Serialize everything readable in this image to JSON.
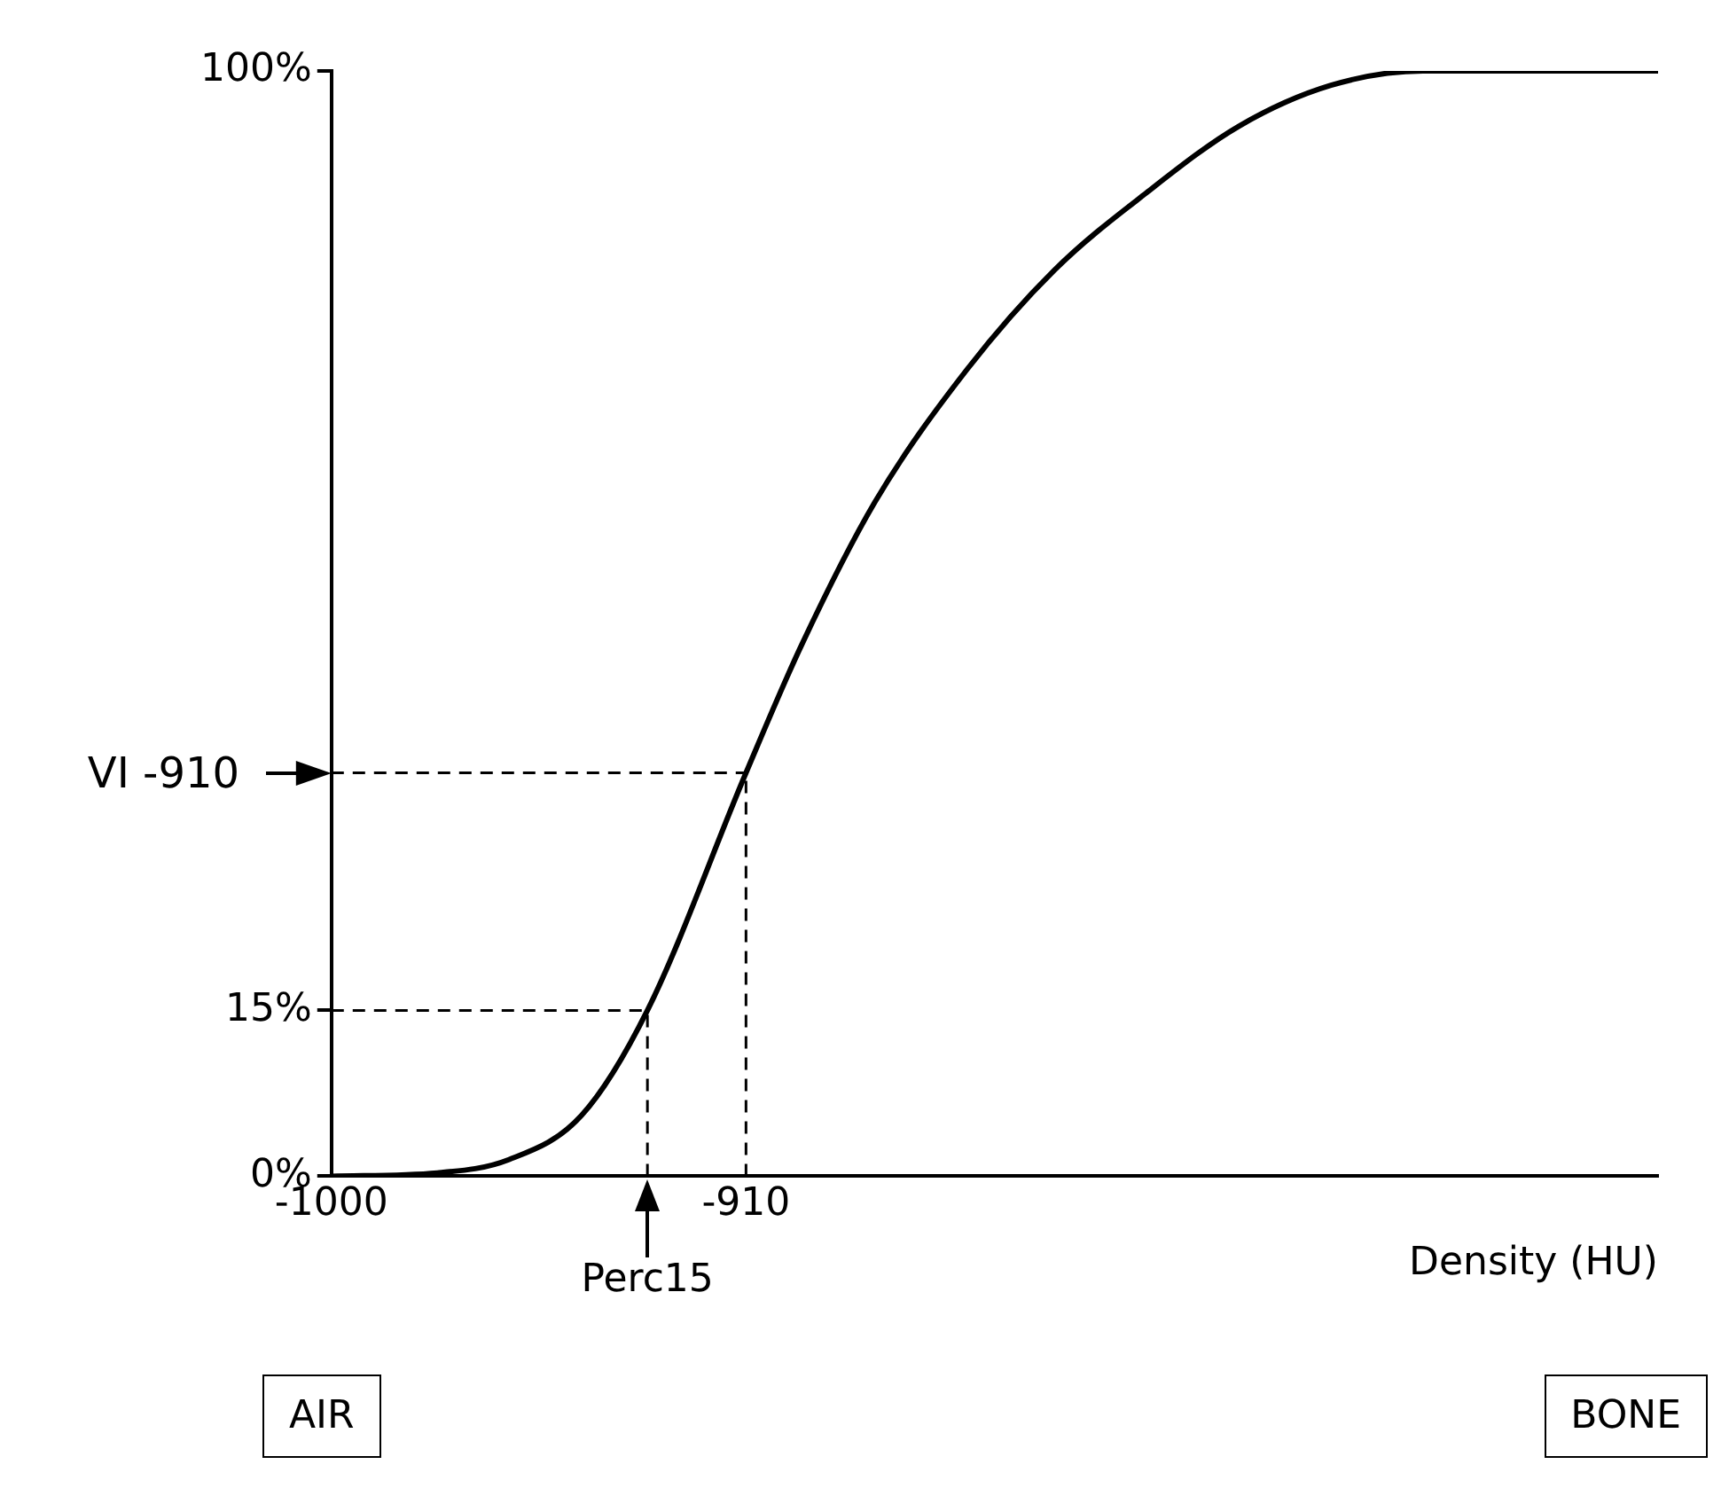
{
  "chart_data": {
    "type": "line",
    "xlabel": "Density (HU)",
    "xlim": [
      -1000,
      -712
    ],
    "xticks": [
      -1000,
      -910
    ],
    "ylim": [
      0,
      100
    ],
    "yticks": [
      {
        "value": 0,
        "label": "0%"
      },
      {
        "value": 15,
        "label": "15%"
      },
      {
        "value": 100,
        "label": "100%"
      }
    ],
    "marker": "none",
    "series": [
      {
        "color": "#000000",
        "x": [
          -1000,
          -977,
          -961.5,
          -945.7,
          -931.4,
          -910,
          -898,
          -882,
          -862,
          -843,
          -823,
          -803,
          -783,
          -763,
          -712
        ],
        "values": [
          0,
          0.3,
          1.5,
          5.5,
          15,
          36.5,
          48,
          61,
          73,
          82,
          89,
          95,
          98.7,
          100,
          100
        ]
      }
    ],
    "ref_lines": [
      {
        "axis": "y",
        "value": 36.5,
        "label": "VI -910",
        "color": "#000000",
        "line_style": "dashed"
      },
      {
        "axis": "y",
        "value": 15,
        "color": "#000000",
        "line_style": "dashed"
      },
      {
        "axis": "x",
        "value": -931.4,
        "label": "Perc15",
        "color": "#000000",
        "line_style": "dashed"
      },
      {
        "axis": "x",
        "value": -910,
        "color": "#000000",
        "line_style": "dashed"
      }
    ],
    "annotations": [
      "AIR",
      "BONE"
    ]
  }
}
